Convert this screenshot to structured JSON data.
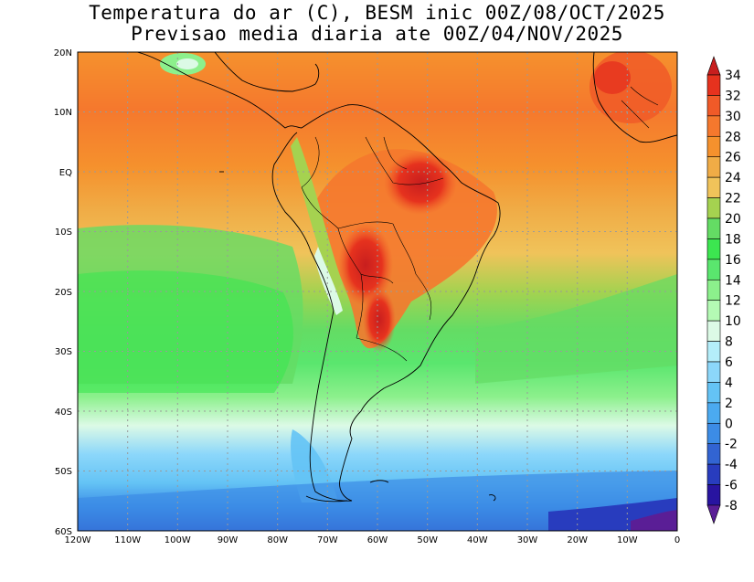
{
  "title": {
    "line1": "Temperatura do ar (C), BESM inic 00Z/08/OCT/2025",
    "line2": "Previsao media diaria ate 00Z/04/NOV/2025"
  },
  "map": {
    "lon_ticks": [
      "120W",
      "110W",
      "100W",
      "90W",
      "80W",
      "70W",
      "60W",
      "50W",
      "40W",
      "30W",
      "20W",
      "10W",
      "0"
    ],
    "lat_ticks": [
      "20N",
      "10N",
      "EQ",
      "10S",
      "20S",
      "30S",
      "40S",
      "50S",
      "60S"
    ]
  },
  "colorbar": {
    "labels": [
      "34",
      "32",
      "30",
      "28",
      "26",
      "24",
      "22",
      "20",
      "18",
      "16",
      "14",
      "12",
      "10",
      "8",
      "6",
      "4",
      "2",
      "0",
      "-2",
      "-4",
      "-6",
      "-8"
    ],
    "colors": [
      "#c81e1e",
      "#e6321e",
      "#f05a28",
      "#f5782d",
      "#f5912d",
      "#f0ac46",
      "#f0c35a",
      "#a5d250",
      "#64dc64",
      "#3ce650",
      "#5ae66e",
      "#8cf08c",
      "#b4fab4",
      "#dcfae6",
      "#b4eefa",
      "#8cd7fa",
      "#64c3f5",
      "#4baaf0",
      "#3c8ce6",
      "#3264d2",
      "#283cbe",
      "#2814a0",
      "#5a1e96"
    ]
  }
}
